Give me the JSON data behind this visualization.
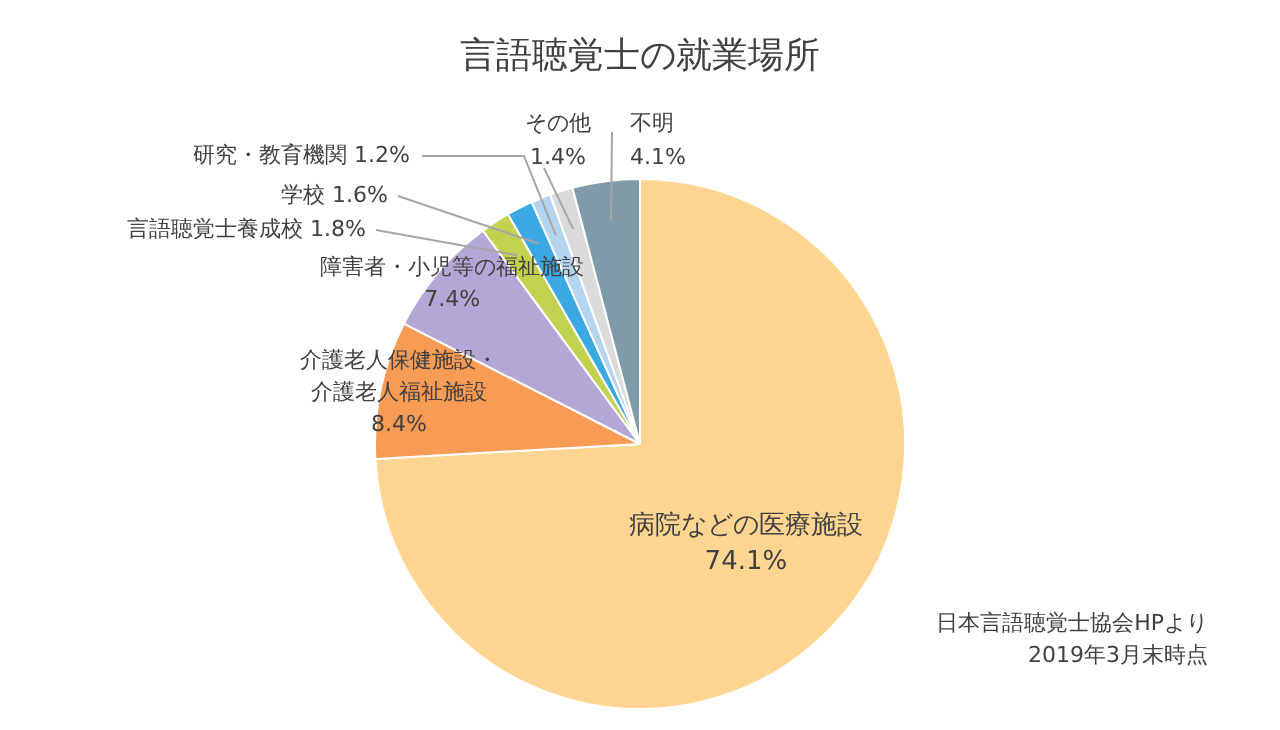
{
  "chart_data": {
    "type": "pie",
    "title": "言語聴覚士の就業場所",
    "categories": [
      "病院などの医療施設",
      "介護老人保健施設・介護老人福祉施設",
      "障害者・小児等の福祉施設",
      "言語聴覚士養成校",
      "学校",
      "研究・教育機関",
      "その他",
      "不明"
    ],
    "values": [
      74.1,
      8.4,
      7.4,
      1.8,
      1.6,
      1.2,
      1.4,
      4.1
    ],
    "colors": [
      "#ffd591",
      "#f79b55",
      "#b4a7d6",
      "#c2d250",
      "#3ba8e3",
      "#b5d4ef",
      "#dadada",
      "#7f9aa8"
    ],
    "value_labels": [
      "74.1%",
      "8.4%",
      "7.4%",
      "1.8%",
      "1.6%",
      "1.2%",
      "1.4%",
      "4.1%"
    ],
    "legend": false,
    "annotations": [
      "日本言語聴覚士協会HPより",
      "2019年3月末時点"
    ]
  }
}
